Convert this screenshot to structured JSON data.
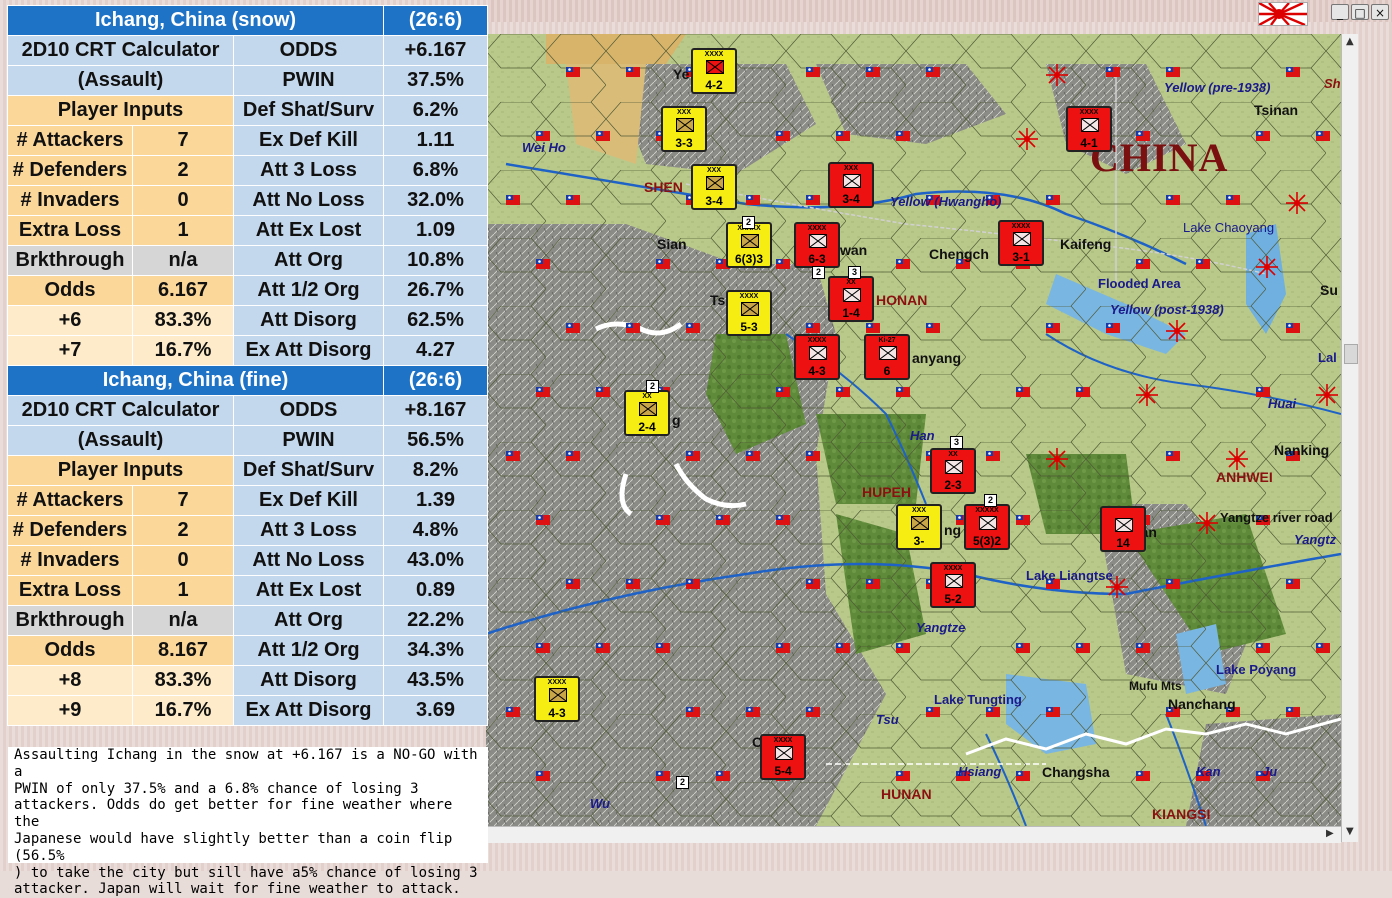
{
  "panels": [
    {
      "title": "Ichang, China (snow)",
      "ref": "(26:6)",
      "calc_line1": "2D10 CRT Calculator",
      "calc_line2": "(Assault)",
      "inputs_header": "Player Inputs",
      "inputs": [
        {
          "label": "# Attackers",
          "value": "7"
        },
        {
          "label": "# Defenders",
          "value": "2"
        },
        {
          "label": "# Invaders",
          "value": "0"
        },
        {
          "label": "Extra Loss",
          "value": "1"
        },
        {
          "label": "Brkthrough",
          "value": "n/a"
        },
        {
          "label": "Odds",
          "value": "6.167"
        },
        {
          "label": "+6",
          "value": "83.3%"
        },
        {
          "label": "+7",
          "value": "16.7%"
        }
      ],
      "results": [
        {
          "label": "ODDS",
          "value": "+6.167"
        },
        {
          "label": "PWIN",
          "value": "37.5%"
        },
        {
          "label": "Def Shat/Surv",
          "value": "6.2%"
        },
        {
          "label": "Ex Def Kill",
          "value": "1.11"
        },
        {
          "label": "Att 3 Loss",
          "value": "6.8%"
        },
        {
          "label": "Att No Loss",
          "value": "32.0%"
        },
        {
          "label": "Att Ex Lost",
          "value": "1.09"
        },
        {
          "label": "Att Org",
          "value": "10.8%"
        },
        {
          "label": "Att 1/2 Org",
          "value": "26.7%"
        },
        {
          "label": "Att Disorg",
          "value": "62.5%"
        },
        {
          "label": "Ex Att Disorg",
          "value": "4.27"
        }
      ]
    },
    {
      "title": "Ichang, China (fine)",
      "ref": "(26:6)",
      "calc_line1": "2D10 CRT Calculator",
      "calc_line2": "(Assault)",
      "inputs_header": "Player Inputs",
      "inputs": [
        {
          "label": "# Attackers",
          "value": "7"
        },
        {
          "label": "# Defenders",
          "value": "2"
        },
        {
          "label": "# Invaders",
          "value": "0"
        },
        {
          "label": "Extra Loss",
          "value": "1"
        },
        {
          "label": "Brkthrough",
          "value": "n/a"
        },
        {
          "label": "Odds",
          "value": "8.167"
        },
        {
          "label": "+8",
          "value": "83.3%"
        },
        {
          "label": "+9",
          "value": "16.7%"
        }
      ],
      "results": [
        {
          "label": "ODDS",
          "value": "+8.167"
        },
        {
          "label": "PWIN",
          "value": "56.5%"
        },
        {
          "label": "Def Shat/Surv",
          "value": "8.2%"
        },
        {
          "label": "Ex Def Kill",
          "value": "1.39"
        },
        {
          "label": "Att 3 Loss",
          "value": "4.8%"
        },
        {
          "label": "Att No Loss",
          "value": "43.0%"
        },
        {
          "label": "Att Ex Lost",
          "value": "0.89"
        },
        {
          "label": "Att Org",
          "value": "22.2%"
        },
        {
          "label": "Att 1/2 Org",
          "value": "34.3%"
        },
        {
          "label": "Att Disorg",
          "value": "43.5%"
        },
        {
          "label": "Ex Att Disorg",
          "value": "3.69"
        }
      ]
    }
  ],
  "note_lines": [
    "Assaulting Ichang in the snow at +6.167 is a NO-GO with a",
    "PWIN of only 37.5% and a 6.8% chance of losing 3",
    "attackers.  Odds do get better for fine weather where the",
    "Japanese would have slightly better than a coin flip (56.5%",
    ") to take the city but sill have a5% chance of losing 3",
    "attacker.  Japan will wait for fine weather to attack."
  ],
  "window": {
    "minimize": "_",
    "maximize": "□",
    "close": "×"
  },
  "map": {
    "big_label": "CHINA",
    "regions": [
      "SHEN",
      "HONAN",
      "HUPEH",
      "ANHWEI",
      "HUNAN",
      "KIANGSI"
    ],
    "cities": [
      "Tsinan",
      "Kaifeng",
      "Chengch",
      "Sian",
      "Tsinlin",
      "wan",
      "anyang",
      "Nanking",
      "han",
      "Changsha",
      "Nanchang",
      "Su",
      "Ye",
      "g",
      "Ch",
      "ng",
      "Mufu Mts"
    ],
    "water_labels": [
      "Yellow (pre-1938)",
      "Yellow (Hwangho)",
      "Wei Ho",
      "Lake Chaoyang",
      "Flooded Area",
      "Yellow (post-1938)",
      "Huai",
      "Han",
      "Yangtze river road",
      "Yangtz",
      "Lake Liangtse",
      "Yangtze",
      "Lake Poyang",
      "Lake Tungting",
      "Hsiang",
      "Kan",
      "Ju",
      "Wu",
      "Tsu",
      "Lal",
      "Sh"
    ],
    "counters": [
      {
        "size": "XXXX",
        "str": "4-2",
        "color": "red-on-yellow"
      },
      {
        "size": "XXX",
        "str": "3-3",
        "color": "yellow"
      },
      {
        "size": "XXX",
        "str": "3-4",
        "color": "yellow"
      },
      {
        "size": "XXX",
        "str": "3-4",
        "color": "red"
      },
      {
        "size": "XXXX",
        "str": "4-1",
        "color": "red"
      },
      {
        "size": "XXXXX",
        "str": "6(3)3",
        "color": "yellow"
      },
      {
        "size": "XXXX",
        "str": "6-3",
        "color": "red"
      },
      {
        "size": "XXXX",
        "str": "3-1",
        "color": "red"
      },
      {
        "size": "XXXX",
        "str": "5-3",
        "color": "yellow"
      },
      {
        "size": "XX",
        "str": "1-4",
        "color": "red"
      },
      {
        "size": "XXXX",
        "str": "4-3",
        "color": "red"
      },
      {
        "size": "Ki-27",
        "str": "6",
        "color": "red"
      },
      {
        "size": "XX",
        "str": "2-4",
        "color": "yellow"
      },
      {
        "size": "XX",
        "str": "2-3",
        "color": "red"
      },
      {
        "size": "XXX",
        "str": "3-",
        "color": "yellow"
      },
      {
        "size": "XXXXX",
        "str": "5(3)2",
        "color": "red"
      },
      {
        "size": "XXXX",
        "str": "5-2",
        "color": "red"
      },
      {
        "size": "",
        "str": "14",
        "color": "red"
      },
      {
        "size": "XXXX",
        "str": "4-3",
        "color": "yellow"
      },
      {
        "size": "XXXX",
        "str": "5-4",
        "color": "red"
      }
    ],
    "stack_badges": [
      "2",
      "2",
      "2",
      "3",
      "3",
      "2",
      "2"
    ]
  }
}
